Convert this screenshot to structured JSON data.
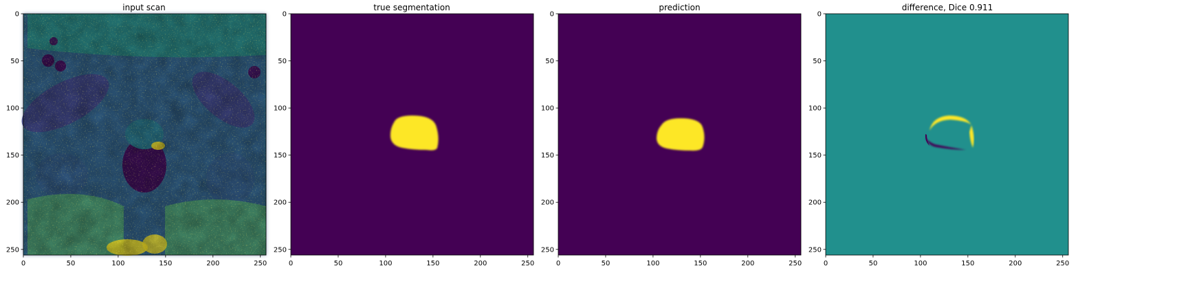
{
  "figure": {
    "panels": [
      {
        "title": "input scan",
        "kind": "mri",
        "xlim": [
          0,
          256
        ],
        "ylim": [
          256,
          0
        ],
        "xticks": [
          0,
          50,
          100,
          150,
          200,
          250
        ],
        "yticks": [
          0,
          50,
          100,
          150,
          200,
          250
        ],
        "colormap": "viridis"
      },
      {
        "title": "true segmentation",
        "kind": "mask",
        "xlim": [
          0,
          256
        ],
        "ylim": [
          256,
          0
        ],
        "xticks": [
          0,
          50,
          100,
          150,
          200,
          250
        ],
        "yticks": [
          0,
          50,
          100,
          150,
          200,
          250
        ],
        "colormap": "viridis"
      },
      {
        "title": "prediction",
        "kind": "mask",
        "xlim": [
          0,
          256
        ],
        "ylim": [
          256,
          0
        ],
        "xticks": [
          0,
          50,
          100,
          150,
          200,
          250
        ],
        "yticks": [
          0,
          50,
          100,
          150,
          200,
          250
        ],
        "colormap": "viridis"
      },
      {
        "title": "difference, Dice 0.911",
        "kind": "difference",
        "xlim": [
          0,
          256
        ],
        "ylim": [
          256,
          0
        ],
        "xticks": [
          0,
          50,
          100,
          150,
          200,
          250
        ],
        "yticks": [
          0,
          50,
          100,
          150,
          200,
          250
        ],
        "colormap": "viridis"
      }
    ],
    "colors": {
      "viridis_low": "#440154",
      "viridis_mid": "#21908d",
      "viridis_high": "#fde725",
      "viridis_lowmid": "#3b528b",
      "viridis_highmid": "#5ec962"
    }
  }
}
